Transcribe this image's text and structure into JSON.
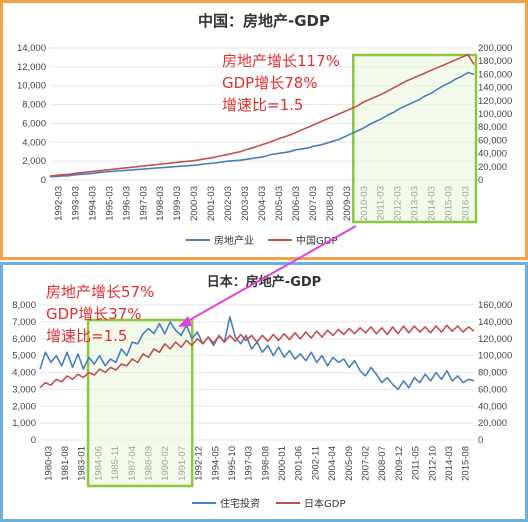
{
  "chart_data": [
    {
      "type": "line",
      "title": "中国：房地产-GDP",
      "x_ticks": [
        "1992-03",
        "1993-03",
        "1994-03",
        "1995-03",
        "1996-03",
        "1997-03",
        "1998-03",
        "1999-03",
        "2000-03",
        "2001-03",
        "2002-03",
        "2003-03",
        "2004-03",
        "2005-03",
        "2006-03",
        "2007-03",
        "2008-03",
        "2009-03",
        "2010-03",
        "2011-03",
        "2012-03",
        "2013-03",
        "2014-03",
        "2015-03",
        "2016-03"
      ],
      "y_left_ticks": [
        "0",
        "2,000",
        "4,000",
        "6,000",
        "8,000",
        "10,000",
        "12,000",
        "14,000"
      ],
      "y_right_ticks": [
        "0",
        "20,000",
        "40,000",
        "60,000",
        "80,000",
        "100,000",
        "120,000",
        "140,000",
        "160,000",
        "180,000",
        "200,000"
      ],
      "ylim_left": [
        0,
        14000
      ],
      "ylim_right": [
        0,
        200000
      ],
      "series": [
        {
          "name": "房地产业",
          "axis": "left",
          "color": "#4a7ebb",
          "values": [
            350,
            380,
            420,
            450,
            550,
            600,
            650,
            700,
            800,
            850,
            900,
            950,
            1000,
            1050,
            1100,
            1150,
            1200,
            1250,
            1300,
            1350,
            1400,
            1450,
            1500,
            1550,
            1600,
            1700,
            1750,
            1800,
            1900,
            2000,
            2050,
            2100,
            2200,
            2300,
            2400,
            2500,
            2700,
            2800,
            2900,
            3000,
            3200,
            3300,
            3400,
            3600,
            3700,
            3900,
            4100,
            4300,
            4600,
            4900,
            5200,
            5500,
            5900,
            6200,
            6500,
            6900,
            7200,
            7600,
            7900,
            8200,
            8500,
            8900,
            9200,
            9600,
            10000,
            10300,
            10700,
            11000,
            11400,
            11200
          ]
        },
        {
          "name": "中国GDP",
          "axis": "right",
          "color": "#c0504d",
          "values": [
            6000,
            7000,
            8000,
            8500,
            10000,
            11000,
            12000,
            13000,
            14000,
            15000,
            16000,
            17000,
            18000,
            19000,
            20000,
            21000,
            22000,
            23000,
            24000,
            25000,
            26000,
            27000,
            28000,
            29000,
            30000,
            32000,
            33000,
            35000,
            37000,
            39000,
            41000,
            43000,
            46000,
            49000,
            52000,
            55000,
            58000,
            62000,
            65000,
            68000,
            72000,
            76000,
            80000,
            84000,
            88000,
            92000,
            96000,
            100000,
            104000,
            108000,
            112000,
            118000,
            122000,
            126000,
            130000,
            135000,
            140000,
            145000,
            150000,
            154000,
            158000,
            162000,
            166000,
            170000,
            174000,
            178000,
            182000,
            186000,
            190000,
            175000
          ]
        }
      ],
      "highlight_range": [
        "2010-03",
        "2016-03"
      ],
      "annotations": [
        "房地产增长117%",
        "GDP增长78%",
        "增速比=1.5"
      ],
      "legend_position": "bottom"
    },
    {
      "type": "line",
      "title": "日本：房地产-GDP",
      "x_ticks": [
        "1980-03",
        "1981-08",
        "1983-01",
        "1984-06",
        "1985-11",
        "1987-04",
        "1988-09",
        "1990-02",
        "1991-07",
        "1992-12",
        "1994-05",
        "1995-10",
        "1997-03",
        "1998-08",
        "2000-01",
        "2001-06",
        "2002-11",
        "2004-04",
        "2005-09",
        "2007-02",
        "2008-07",
        "2009-12",
        "2011-05",
        "2012-10",
        "2014-03",
        "2015-08"
      ],
      "y_left_ticks": [
        "0",
        "1,000",
        "2,000",
        "3,000",
        "4,000",
        "5,000",
        "6,000",
        "7,000",
        "8,000"
      ],
      "y_right_ticks": [
        "0",
        "20,000",
        "40,000",
        "60,000",
        "80,000",
        "100,000",
        "120,000",
        "140,000",
        "160,000"
      ],
      "ylim_left": [
        0,
        8000
      ],
      "ylim_right": [
        0,
        160000
      ],
      "series": [
        {
          "name": "住宅投资",
          "axis": "left",
          "color": "#4a7ebb",
          "values": [
            4200,
            5200,
            4600,
            5000,
            4400,
            5200,
            4300,
            5100,
            4200,
            4900,
            4500,
            5000,
            4400,
            4800,
            4600,
            5400,
            5000,
            5800,
            5700,
            6300,
            6600,
            6300,
            6900,
            6300,
            7000,
            6500,
            6200,
            6800,
            6000,
            6400,
            5700,
            6100,
            5600,
            6200,
            5800,
            7300,
            6100,
            5700,
            6200,
            5400,
            5800,
            5200,
            5600,
            5000,
            5500,
            4900,
            5300,
            4800,
            5100,
            4700,
            5200,
            4600,
            5000,
            4400,
            4900,
            4600,
            4800,
            4300,
            4700,
            4100,
            3800,
            4300,
            3900,
            3400,
            3700,
            3300,
            3000,
            3500,
            3100,
            3700,
            3400,
            3900,
            3500,
            4000,
            3600,
            4100,
            3500,
            3800,
            3400,
            3600,
            3500
          ]
        },
        {
          "name": "日本GDP",
          "axis": "right",
          "color": "#c0504d",
          "values": [
            62000,
            68000,
            65000,
            72000,
            69000,
            76000,
            72000,
            78000,
            74000,
            80000,
            77000,
            84000,
            80000,
            86000,
            83000,
            90000,
            88000,
            96000,
            92000,
            102000,
            98000,
            108000,
            104000,
            114000,
            108000,
            116000,
            110000,
            118000,
            112000,
            120000,
            114000,
            122000,
            115000,
            123000,
            116000,
            124000,
            117000,
            125000,
            118000,
            124000,
            116000,
            124000,
            117000,
            125000,
            118000,
            126000,
            119000,
            127000,
            120000,
            128000,
            121000,
            129000,
            122000,
            130000,
            124000,
            131000,
            125000,
            132000,
            126000,
            133000,
            127000,
            134000,
            126000,
            133000,
            125000,
            134000,
            126000,
            135000,
            127000,
            135000,
            128000,
            134000,
            127000,
            135000,
            128000,
            136000,
            129000,
            135000,
            128000,
            134000,
            129000
          ]
        }
      ],
      "highlight_range": [
        "1984-06",
        "1991-07"
      ],
      "annotations": [
        "房地产增长57%",
        "GDP增长37%",
        "增速比=1.5"
      ],
      "legend_position": "bottom"
    }
  ]
}
